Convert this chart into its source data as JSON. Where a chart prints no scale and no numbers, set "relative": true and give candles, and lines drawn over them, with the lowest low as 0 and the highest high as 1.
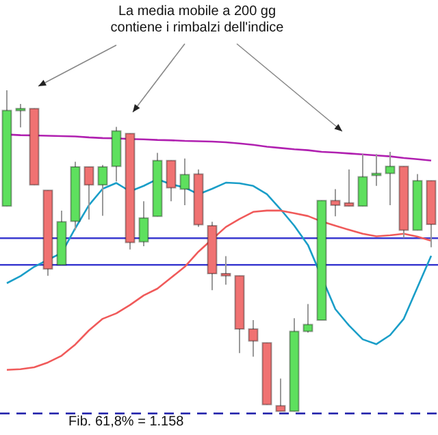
{
  "chart_data": {
    "type": "candlestick",
    "relative": true,
    "legend": false,
    "grid": false,
    "tick_labels": false,
    "annotations": [
      "La media mobile a 200 gg contiene i rimbalzi dell'indice",
      "Fib. 61,8% = 1.158"
    ],
    "categories": [
      null,
      null,
      null,
      null,
      null,
      null,
      null,
      null,
      null,
      null,
      null,
      null,
      null,
      null,
      null,
      null,
      null,
      null,
      null,
      null,
      null,
      null,
      null,
      null,
      null,
      null,
      null,
      null,
      null,
      null,
      null,
      null
    ],
    "ohlc": [
      [
        0.639,
        1,
        0.639,
        0.937
      ],
      [
        0.937,
        0.957,
        0.884,
        0.943
      ],
      [
        0.943,
        0.943,
        0.705,
        0.705
      ],
      [
        0.688,
        0.688,
        0.422,
        0.443
      ],
      [
        0.456,
        0.625,
        0.456,
        0.59
      ],
      [
        0.592,
        0.777,
        0.564,
        0.761
      ],
      [
        0.761,
        0.761,
        0.597,
        0.705
      ],
      [
        0.705,
        0.767,
        0.609,
        0.761
      ],
      [
        0.763,
        0.886,
        0.716,
        0.873
      ],
      [
        0.865,
        0.865,
        0.504,
        0.526
      ],
      [
        0.528,
        0.654,
        0.514,
        0.602
      ],
      [
        0.607,
        0.805,
        0.607,
        0.781
      ],
      [
        0.781,
        0.781,
        0.654,
        0.696
      ],
      [
        0.692,
        0.787,
        0.642,
        0.737
      ],
      [
        0.739,
        0.753,
        0.574,
        0.581
      ],
      [
        0.578,
        0.59,
        0.377,
        0.429
      ],
      [
        0.429,
        0.483,
        0.394,
        0.422
      ],
      [
        0.422,
        0.422,
        0.181,
        0.256
      ],
      [
        0.256,
        0.284,
        0.17,
        0.219
      ],
      [
        0.213,
        0.213,
        0.021,
        0.021
      ],
      [
        0.017,
        0.102,
        0,
        0
      ],
      [
        0,
        0.29,
        0,
        0.249
      ],
      [
        0.249,
        0.334,
        0.245,
        0.27
      ],
      [
        0.284,
        0.656,
        0.284,
        0.656
      ],
      [
        0.656,
        0.692,
        0.607,
        0.642
      ],
      [
        0.649,
        0.753,
        0.639,
        0.639
      ],
      [
        0.639,
        0.801,
        0.639,
        0.73
      ],
      [
        0.735,
        0.801,
        0.702,
        0.741
      ],
      [
        0.741,
        0.808,
        0.642,
        0.763
      ],
      [
        0.763,
        0.763,
        0.54,
        0.564
      ],
      [
        0.564,
        0.739,
        0.564,
        0.718
      ],
      [
        0.718,
        0.718,
        0.511,
        0.582
      ]
    ],
    "colors": [
      "#5ee05e",
      "#5ee05e",
      "#f07272",
      "#f07272",
      "#5ee05e",
      "#5ee05e",
      "#f07272",
      "#5ee05e",
      "#5ee05e",
      "#f07272",
      "#5ee05e",
      "#5ee05e",
      "#f07272",
      "#5ee05e",
      "#f07272",
      "#f07272",
      "#f07272",
      "#f07272",
      "#f07272",
      "#f07272",
      "#f07272",
      "#5ee05e",
      "#5ee05e",
      "#5ee05e",
      "#f07272",
      "#f07272",
      "#5ee05e",
      "#5ee05e",
      "#5ee05e",
      "#f07272",
      "#5ee05e",
      "#f07272"
    ],
    "series": [
      {
        "type": "line",
        "color": "#b020b0",
        "values": [
          0.862,
          0.86,
          0.859,
          0.858,
          0.857,
          0.856,
          0.853,
          0.851,
          0.85,
          0.848,
          0.847,
          0.845,
          0.844,
          0.842,
          0.841,
          0.84,
          0.838,
          0.834,
          0.83,
          0.824,
          0.82,
          0.816,
          0.813,
          0.808,
          0.806,
          0.803,
          0.8,
          0.797,
          0.794,
          0.789,
          0.785,
          0.781
        ]
      },
      {
        "type": "line",
        "color": "#f05a5a",
        "values": [
          0.129,
          0.131,
          0.137,
          0.152,
          0.173,
          0.208,
          0.252,
          0.288,
          0.305,
          0.331,
          0.361,
          0.382,
          0.416,
          0.45,
          0.497,
          0.536,
          0.574,
          0.599,
          0.621,
          0.625,
          0.625,
          0.617,
          0.608,
          0.591,
          0.578,
          0.565,
          0.553,
          0.545,
          0.548,
          0.553,
          0.544,
          0.531
        ]
      },
      {
        "type": "line",
        "color": "#1a9ec8",
        "values": [
          0.399,
          0.421,
          0.45,
          0.472,
          0.493,
          0.57,
          0.642,
          0.693,
          0.711,
          0.685,
          0.702,
          0.723,
          0.707,
          0.697,
          0.676,
          0.693,
          0.712,
          0.71,
          0.702,
          0.676,
          0.629,
          0.578,
          0.518,
          null,
          0.318,
          0.267,
          0.224,
          0.209,
          0.237,
          0.288,
          0.386,
          0.484
        ]
      }
    ],
    "ref_lines": [
      {
        "axis": "y",
        "value": 0.539,
        "color": "#3a3ad0"
      },
      {
        "axis": "y",
        "value": 0.456,
        "color": "#3a3ad0"
      },
      {
        "axis": "y",
        "value": -0.007,
        "color": "#1a1aa8",
        "line_style": "dashed"
      }
    ]
  }
}
